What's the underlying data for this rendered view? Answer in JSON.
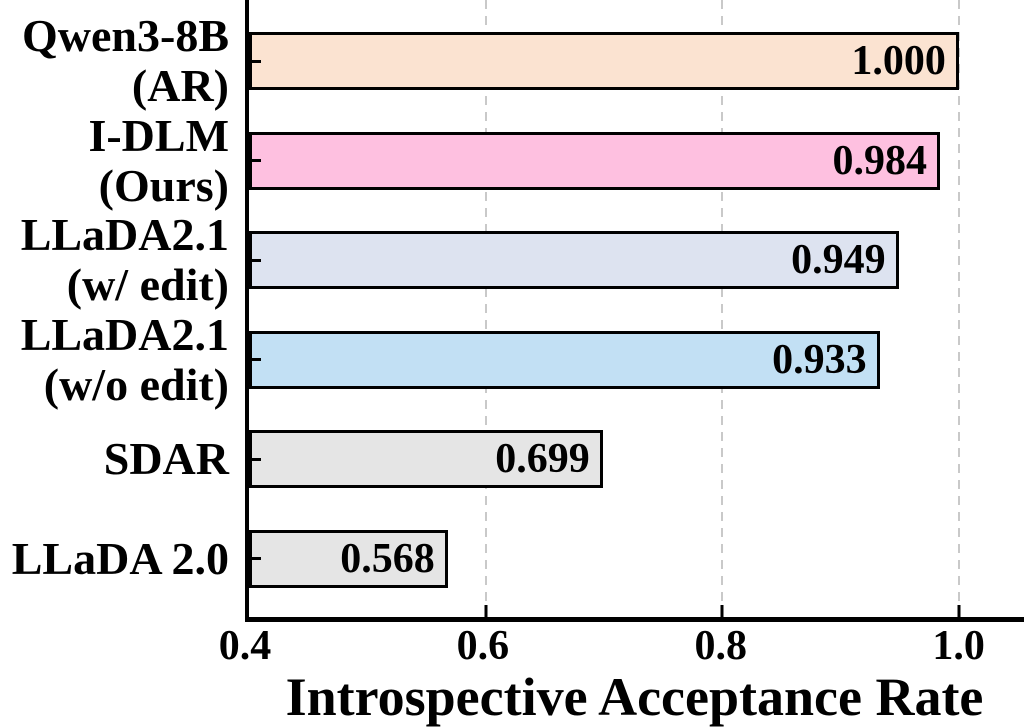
{
  "chart_data": {
    "type": "bar",
    "orientation": "horizontal",
    "title": "",
    "xlabel": "Introspective Acceptance Rate",
    "ylabel": "",
    "xlim": [
      0.4,
      1.055
    ],
    "x_ticks": [
      0.4,
      0.6,
      0.8,
      1.0
    ],
    "x_tick_labels": [
      "0.4",
      "0.6",
      "0.8",
      "1.0"
    ],
    "grid": "vertical-dashed",
    "gridline_values": [
      0.6,
      0.8,
      1.0
    ],
    "gridline_color": "#c9c9c9",
    "axis_color": "#000000",
    "bar_edge_color": "#000000",
    "value_label_color": "#000000",
    "categories": [
      "Qwen3-8B (AR)",
      "I-DLM (Ours)",
      "LLaDA2.1 (w/ edit)",
      "LLaDA2.1 (w/o edit)",
      "SDAR",
      "LLaDA 2.0"
    ],
    "values": [
      1.0,
      0.984,
      0.949,
      0.933,
      0.699,
      0.568
    ],
    "bars": [
      {
        "label_lines": [
          "Qwen3-8B",
          "(AR)"
        ],
        "value": 1.0,
        "value_label": "1.000",
        "color": "#fbe3d1"
      },
      {
        "label_lines": [
          "I-DLM",
          "(Ours)"
        ],
        "value": 0.984,
        "value_label": "0.984",
        "color": "#fec0e0"
      },
      {
        "label_lines": [
          "LLaDA2.1",
          "(w/ edit)"
        ],
        "value": 0.949,
        "value_label": "0.949",
        "color": "#dde3f0"
      },
      {
        "label_lines": [
          "LLaDA2.1",
          "(w/o edit)"
        ],
        "value": 0.933,
        "value_label": "0.933",
        "color": "#c2e0f4"
      },
      {
        "label_lines": [
          "SDAR"
        ],
        "value": 0.699,
        "value_label": "0.699",
        "color": "#e5e5e5"
      },
      {
        "label_lines": [
          "LLaDA 2.0"
        ],
        "value": 0.568,
        "value_label": "0.568",
        "color": "#e5e5e5"
      }
    ]
  }
}
